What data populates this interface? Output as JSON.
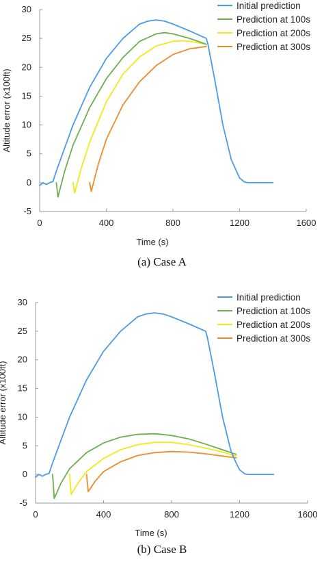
{
  "chart_data": [
    {
      "type": "line",
      "caption": "(a) Case A",
      "xlabel": "Time (s)",
      "ylabel": "Altitude error (x100ft)",
      "xlim": [
        0,
        1600
      ],
      "ylim": [
        -5,
        30
      ],
      "xticks": [
        "0",
        "400",
        "800",
        "1200",
        "1600"
      ],
      "yticks": [
        "-5",
        "0",
        "5",
        "10",
        "15",
        "20",
        "25",
        "30"
      ],
      "legend_position": "top-right",
      "series": [
        {
          "name": "Initial prediction",
          "color": "#4a9be4",
          "x": [
            0,
            20,
            40,
            60,
            80,
            100,
            150,
            200,
            300,
            400,
            500,
            600,
            650,
            700,
            750,
            800,
            900,
            1000,
            1010,
            1050,
            1100,
            1150,
            1200,
            1230,
            1250,
            1300,
            1350,
            1400
          ],
          "y": [
            -0.5,
            0,
            -0.3,
            0,
            0.2,
            2,
            6,
            10,
            16.5,
            21.5,
            25,
            27.5,
            28,
            28.2,
            28,
            27.5,
            26.3,
            25,
            24,
            18,
            10,
            4,
            0.8,
            0.1,
            0,
            0,
            0,
            0
          ]
        },
        {
          "name": "Prediction at 100s",
          "color": "#6ab04c",
          "x": [
            100,
            110,
            150,
            200,
            300,
            400,
            500,
            600,
            700,
            750,
            800,
            900,
            1000
          ],
          "y": [
            0,
            -2.5,
            2,
            6.5,
            13,
            18,
            21.7,
            24.5,
            25.8,
            26,
            25.8,
            25,
            24
          ]
        },
        {
          "name": "Prediction at 200s",
          "color": "#f2e81c",
          "x": [
            200,
            210,
            250,
            300,
            400,
            500,
            600,
            700,
            800,
            850,
            900,
            1000
          ],
          "y": [
            0,
            -1.8,
            2.5,
            7,
            14,
            18.8,
            21.8,
            23.7,
            24.5,
            24.6,
            24.5,
            24
          ]
        },
        {
          "name": "Prediction at 300s",
          "color": "#ee8a2c",
          "x": [
            300,
            310,
            350,
            400,
            500,
            600,
            700,
            800,
            900,
            1000
          ],
          "y": [
            0,
            -1.5,
            3,
            7.5,
            13.5,
            17.5,
            20.3,
            22.2,
            23.2,
            23.6
          ]
        }
      ]
    },
    {
      "type": "line",
      "caption": "(b) Case B",
      "xlabel": "Time (s)",
      "ylabel": "Altitude error (x100ft)",
      "xlim": [
        0,
        1600
      ],
      "ylim": [
        -5,
        30
      ],
      "xticks": [
        "0",
        "400",
        "800",
        "1200",
        "1600"
      ],
      "yticks": [
        "-5",
        "0",
        "5",
        "10",
        "15",
        "20",
        "25",
        "30"
      ],
      "legend_position": "top-right",
      "series": [
        {
          "name": "Initial prediction",
          "color": "#4a9be4",
          "x": [
            0,
            20,
            40,
            60,
            80,
            100,
            150,
            200,
            300,
            400,
            500,
            600,
            650,
            700,
            750,
            800,
            900,
            1000,
            1010,
            1050,
            1100,
            1150,
            1180,
            1200,
            1230,
            1250,
            1300,
            1350,
            1400
          ],
          "y": [
            -0.5,
            0,
            -0.3,
            0,
            0.2,
            2,
            6,
            10,
            16.5,
            21.5,
            25,
            27.5,
            28,
            28.2,
            28,
            27.5,
            26.3,
            25,
            24,
            18,
            10,
            4,
            2,
            0.8,
            0.1,
            0,
            0,
            0,
            0
          ]
        },
        {
          "name": "Prediction at 100s",
          "color": "#6ab04c",
          "x": [
            100,
            110,
            150,
            200,
            300,
            400,
            500,
            600,
            700,
            800,
            900,
            1000,
            1100,
            1180
          ],
          "y": [
            0,
            -4.2,
            -1.5,
            1,
            3.8,
            5.5,
            6.5,
            7,
            7.1,
            6.8,
            6.2,
            5.3,
            4.3,
            3.5
          ]
        },
        {
          "name": "Prediction at 200s",
          "color": "#f2e81c",
          "x": [
            200,
            210,
            250,
            300,
            400,
            500,
            600,
            700,
            800,
            900,
            1000,
            1100,
            1180
          ],
          "y": [
            0,
            -3.5,
            -1.5,
            0.5,
            2.8,
            4.3,
            5.2,
            5.6,
            5.6,
            5.2,
            4.6,
            3.9,
            3.2
          ]
        },
        {
          "name": "Prediction at 300s",
          "color": "#ee8a2c",
          "x": [
            300,
            310,
            350,
            400,
            500,
            600,
            700,
            800,
            900,
            1000,
            1100,
            1180
          ],
          "y": [
            0,
            -3,
            -1.2,
            0.5,
            2.2,
            3.3,
            3.8,
            4,
            3.9,
            3.6,
            3.2,
            2.9
          ]
        }
      ]
    }
  ]
}
